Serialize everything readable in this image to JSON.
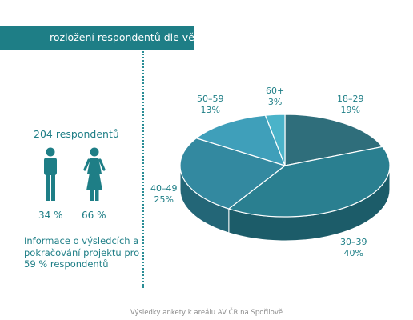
{
  "header": {
    "title": "rozložení respondentů dle věku"
  },
  "left_panel": {
    "respondents_total": "204 respondentů",
    "male_icon": "male-person-icon",
    "female_icon": "female-person-icon",
    "male_pct": "34 %",
    "female_pct": "66 %",
    "info_text": "Informace o výsledcích a pokračování projektu pro 59 % respondentů"
  },
  "footer": {
    "text": "Výsledky ankety k areálu AV ČR na Spořilově"
  },
  "colors": {
    "accent": "#1e7e86",
    "slices_top": [
      "#2f6e7b",
      "#2a7f90",
      "#3389a0",
      "#3f9fba",
      "#4ab3c9"
    ],
    "slices_side": [
      "#1f4f59",
      "#1c5c69",
      "#236677",
      "#2b7a8e",
      "#358ea1"
    ]
  },
  "chart_data": {
    "type": "pie",
    "title": "rozložení respondentů dle věku",
    "categories": [
      "18–29",
      "30–39",
      "40–49",
      "50–59",
      "60+"
    ],
    "values": [
      19,
      40,
      25,
      13,
      3
    ],
    "labels": [
      {
        "category": "18–29",
        "value": "19%"
      },
      {
        "category": "30–39",
        "value": "40%"
      },
      {
        "category": "40–49",
        "value": "25%"
      },
      {
        "category": "50–59",
        "value": "13%"
      },
      {
        "category": "60+",
        "value": "3%"
      }
    ]
  }
}
